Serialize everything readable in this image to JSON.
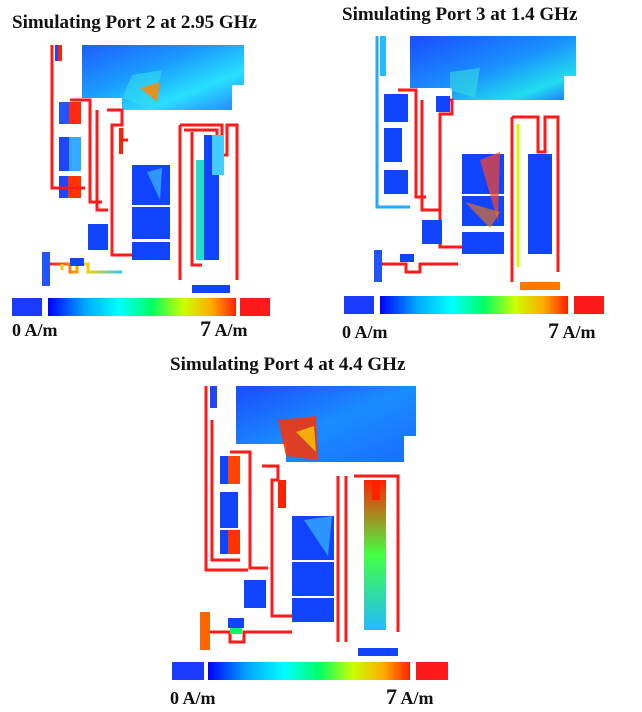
{
  "panels": [
    {
      "title": "Simulating Port 2 at 2.95 GHz",
      "scale_min": "0 A/m",
      "scale_max_value": "7",
      "scale_max_unit": " A/m"
    },
    {
      "title": "Simulating Port 3 at 1.4 GHz",
      "scale_min": "0 A/m",
      "scale_max_value": "7",
      "scale_max_unit": " A/m"
    },
    {
      "title": "Simulating Port 4  at 4.4 GHz",
      "scale_min": "0 A/m",
      "scale_max_value": "7",
      "scale_max_unit": " A/m"
    }
  ],
  "colormap": [
    "#0000ff",
    "#00aaff",
    "#00ffff",
    "#00ff66",
    "#ccff00",
    "#ffaa00",
    "#ff0000"
  ]
}
